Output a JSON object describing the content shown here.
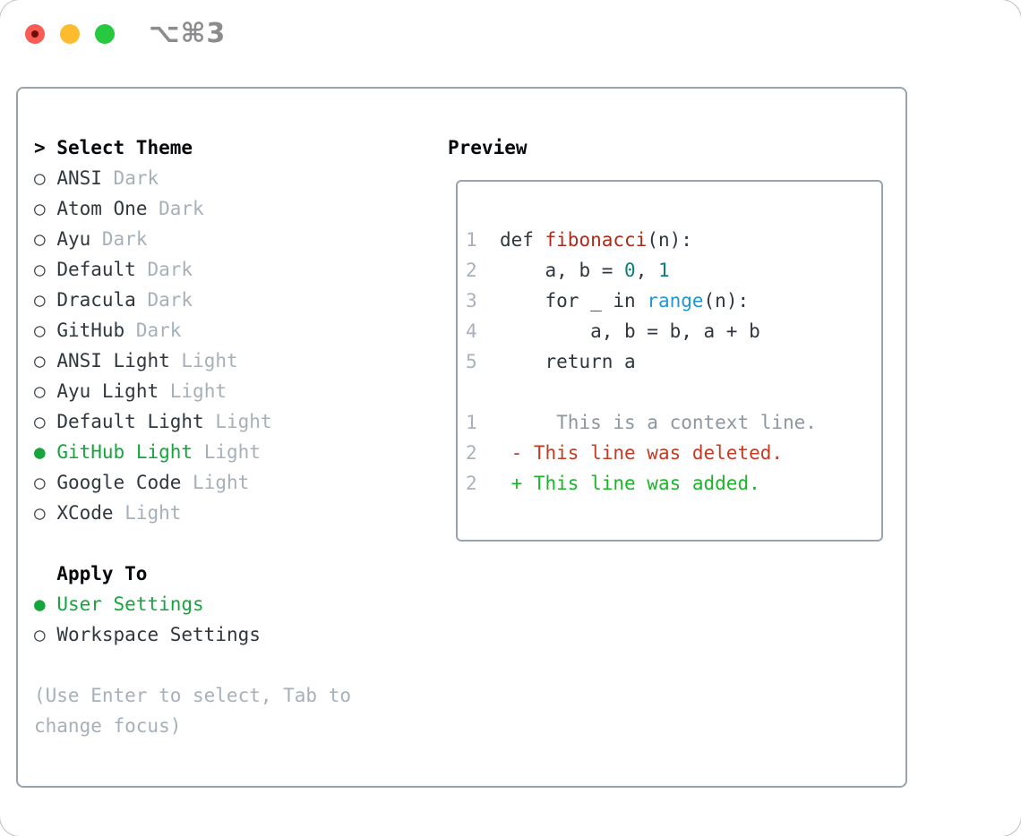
{
  "window": {
    "title": "⌥⌘3",
    "controls": [
      {
        "name": "close",
        "color": "#f85c54"
      },
      {
        "name": "minimize",
        "color": "#fdbc2e"
      },
      {
        "name": "zoom",
        "color": "#27c93f"
      }
    ]
  },
  "glyphs": {
    "header_prefix": ">",
    "radio_unselected": "○",
    "radio_selected": "●",
    "apply_header_indent": "  "
  },
  "theme_list": {
    "header": "Select Theme",
    "items": [
      {
        "name": "ANSI",
        "variant": "Dark",
        "selected": false
      },
      {
        "name": "Atom One",
        "variant": "Dark",
        "selected": false
      },
      {
        "name": "Ayu",
        "variant": "Dark",
        "selected": false
      },
      {
        "name": "Default",
        "variant": "Dark",
        "selected": false
      },
      {
        "name": "Dracula",
        "variant": "Dark",
        "selected": false
      },
      {
        "name": "GitHub",
        "variant": "Dark",
        "selected": false
      },
      {
        "name": "ANSI Light",
        "variant": "Light",
        "selected": false
      },
      {
        "name": "Ayu Light",
        "variant": "Light",
        "selected": false
      },
      {
        "name": "Default Light",
        "variant": "Light",
        "selected": false
      },
      {
        "name": "GitHub Light",
        "variant": "Light",
        "selected": true
      },
      {
        "name": "Google Code",
        "variant": "Light",
        "selected": false
      },
      {
        "name": "XCode",
        "variant": "Light",
        "selected": false
      }
    ]
  },
  "apply_to": {
    "header": "Apply To",
    "options": [
      {
        "label": "User Settings",
        "selected": true
      },
      {
        "label": "Workspace Settings",
        "selected": false
      }
    ]
  },
  "hint": [
    "(Use Enter to select, Tab to",
    "change focus)"
  ],
  "preview": {
    "header": "Preview",
    "lines": [
      {
        "segments": [
          {
            "t": "1",
            "c": "lnum"
          },
          {
            "t": "  def ",
            "c": "code"
          },
          {
            "t": "fibonacci",
            "c": "func"
          },
          {
            "t": "(n):",
            "c": "code"
          }
        ]
      },
      {
        "segments": [
          {
            "t": "2",
            "c": "lnum"
          },
          {
            "t": "      a, b = ",
            "c": "code"
          },
          {
            "t": "0",
            "c": "num"
          },
          {
            "t": ", ",
            "c": "code"
          },
          {
            "t": "1",
            "c": "num"
          }
        ]
      },
      {
        "segments": [
          {
            "t": "3",
            "c": "lnum"
          },
          {
            "t": "      for _ in ",
            "c": "code"
          },
          {
            "t": "range",
            "c": "builtin"
          },
          {
            "t": "(n):",
            "c": "code"
          }
        ]
      },
      {
        "segments": [
          {
            "t": "4",
            "c": "lnum"
          },
          {
            "t": "          a, b = b, a + b",
            "c": "code"
          }
        ]
      },
      {
        "segments": [
          {
            "t": "5",
            "c": "lnum"
          },
          {
            "t": "      return a",
            "c": "code"
          }
        ]
      },
      {
        "segments": []
      },
      {
        "segments": [
          {
            "t": "1",
            "c": "lnum"
          },
          {
            "t": "       This is a context line.",
            "c": "ctx"
          }
        ]
      },
      {
        "segments": [
          {
            "t": "2",
            "c": "lnum"
          },
          {
            "t": "   ",
            "c": "ctx"
          },
          {
            "t": "- This line was deleted.",
            "c": "del"
          }
        ]
      },
      {
        "segments": [
          {
            "t": "2",
            "c": "lnum"
          },
          {
            "t": "   ",
            "c": "ctx"
          },
          {
            "t": "+ This line was added.",
            "c": "add"
          }
        ]
      }
    ]
  },
  "colors": {
    "text": "#30373e",
    "dim": "#a6b0ba",
    "selection_green": "#16a53c",
    "panel_border": "#9aa3ad",
    "lnum": "#a9b2bc",
    "code": "#2f363d",
    "func": "#b02a1b",
    "num": "#0f7e79",
    "builtin": "#2196d3",
    "ctx": "#8e969e",
    "del": "#c63a22",
    "add": "#1db32a"
  }
}
